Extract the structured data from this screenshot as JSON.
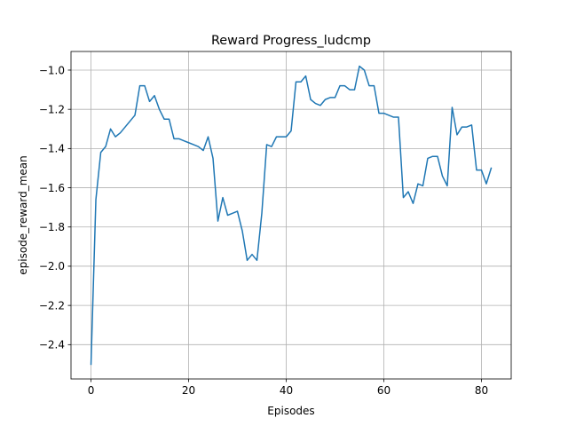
{
  "chart_data": {
    "type": "line",
    "title": "Reward Progress_ludcmp",
    "xlabel": "Episodes",
    "ylabel": "episode_reward_mean",
    "xlim": [
      -4.1,
      86.1
    ],
    "ylim": [
      -2.575,
      -0.905
    ],
    "xticks": [
      0,
      20,
      40,
      60,
      80
    ],
    "yticks": [
      -2.4,
      -2.2,
      -2.0,
      -1.8,
      -1.6,
      -1.4,
      -1.2,
      -1.0
    ],
    "xtick_labels": [
      "0",
      "20",
      "40",
      "60",
      "80"
    ],
    "ytick_labels": [
      "−2.4",
      "−2.2",
      "−2.0",
      "−1.8",
      "−1.6",
      "−1.4",
      "−1.2",
      "−1.0"
    ],
    "grid": true,
    "series": [
      {
        "color": "#1f77b4",
        "x": [
          0,
          1,
          2,
          3,
          4,
          5,
          6,
          7,
          8,
          9,
          10,
          11,
          12,
          13,
          14,
          15,
          16,
          17,
          18,
          19,
          20,
          21,
          22,
          23,
          24,
          25,
          26,
          27,
          28,
          29,
          30,
          31,
          32,
          33,
          34,
          35,
          36,
          37,
          38,
          39,
          40,
          41,
          42,
          43,
          44,
          45,
          46,
          47,
          48,
          49,
          50,
          51,
          52,
          53,
          54,
          55,
          56,
          57,
          58,
          59,
          60,
          61,
          62,
          63,
          64,
          65,
          66,
          67,
          68,
          69,
          70,
          71,
          72,
          73,
          74,
          75,
          76,
          77,
          78,
          79,
          80,
          81,
          82
        ],
        "y": [
          -2.5,
          -1.66,
          -1.42,
          -1.39,
          -1.3,
          -1.34,
          -1.32,
          -1.29,
          -1.26,
          -1.23,
          -1.08,
          -1.08,
          -1.16,
          -1.13,
          -1.2,
          -1.25,
          -1.25,
          -1.35,
          -1.35,
          -1.36,
          -1.37,
          -1.38,
          -1.39,
          -1.41,
          -1.34,
          -1.45,
          -1.77,
          -1.65,
          -1.74,
          -1.73,
          -1.72,
          -1.82,
          -1.97,
          -1.94,
          -1.97,
          -1.73,
          -1.38,
          -1.39,
          -1.34,
          -1.34,
          -1.34,
          -1.31,
          -1.06,
          -1.06,
          -1.03,
          -1.15,
          -1.17,
          -1.18,
          -1.15,
          -1.14,
          -1.14,
          -1.08,
          -1.08,
          -1.1,
          -1.1,
          -0.98,
          -1.0,
          -1.08,
          -1.08,
          -1.22,
          -1.22,
          -1.23,
          -1.24,
          -1.24,
          -1.65,
          -1.62,
          -1.68,
          -1.58,
          -1.59,
          -1.45,
          -1.44,
          -1.44,
          -1.54,
          -1.59,
          -1.19,
          -1.33,
          -1.29,
          -1.29,
          -1.28,
          -1.51,
          -1.51,
          -1.58,
          -1.5
        ]
      }
    ]
  }
}
